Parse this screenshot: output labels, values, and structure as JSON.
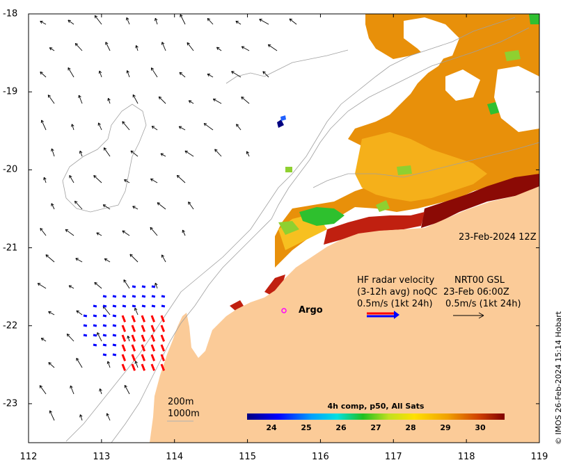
{
  "axes": {
    "x_ticks": [
      "112",
      "113",
      "114",
      "115",
      "116",
      "117",
      "118",
      "119"
    ],
    "y_ticks": [
      "-18",
      "-19",
      "-20",
      "-21",
      "-22",
      "-23"
    ],
    "x_range": [
      112,
      119
    ],
    "y_range": [
      -23.5,
      -18
    ]
  },
  "timestamp": "23-Feb-2024 12Z",
  "legend": {
    "line1_left": "HF radar velocity",
    "line1_right": "NRT00 GSL",
    "line2_left": "(3-12h avg) noQC",
    "line2_right": "23-Feb 06:00Z",
    "line3_left": "0.5m/s (1kt 24h)",
    "line3_right": "0.5m/s (1kt 24h)"
  },
  "argo_label": "Argo",
  "isobaths": {
    "shallow": "200m",
    "deep": "1000m"
  },
  "colorbar": {
    "title": "4h comp, p50, All Sats",
    "ticks": [
      "24",
      "25",
      "26",
      "27",
      "28",
      "29",
      "30"
    ],
    "range": [
      23.3,
      30.7
    ]
  },
  "credit": "© IMOS 26-Feb-2024 15:14 Hobart",
  "colors": {
    "land": "#fbcb98",
    "sst_warm": "#e8900a",
    "sst_hot": "#8b0a05",
    "radar_red": "#ff0000",
    "radar_blue": "#0000ff",
    "argo": "#ff00ff"
  }
}
